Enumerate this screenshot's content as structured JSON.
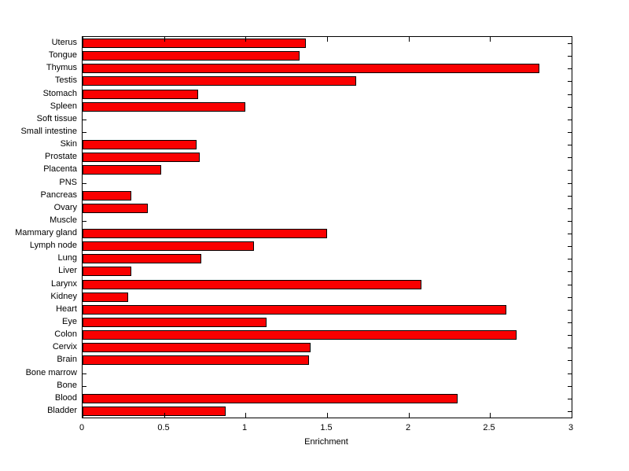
{
  "chart_data": {
    "type": "bar",
    "orientation": "horizontal",
    "title": "",
    "xlabel": "Enrichment",
    "ylabel": "",
    "xlim": [
      0,
      3
    ],
    "xticks": [
      0,
      0.5,
      1,
      1.5,
      2,
      2.5,
      3
    ],
    "xtick_labels": [
      "0",
      "0.5",
      "1",
      "1.5",
      "2",
      "2.5",
      "3"
    ],
    "categories": [
      "Uterus",
      "Tongue",
      "Thymus",
      "Testis",
      "Stomach",
      "Spleen",
      "Soft tissue",
      "Small intestine",
      "Skin",
      "Prostate",
      "Placenta",
      "PNS",
      "Pancreas",
      "Ovary",
      "Muscle",
      "Mammary gland",
      "Lymph node",
      "Lung",
      "Liver",
      "Larynx",
      "Kidney",
      "Heart",
      "Eye",
      "Colon",
      "Cervix",
      "Brain",
      "Bone marrow",
      "Bone",
      "Blood",
      "Bladder"
    ],
    "values": [
      1.37,
      1.33,
      2.8,
      1.68,
      0.71,
      1.0,
      0,
      0,
      0.7,
      0.72,
      0.48,
      0,
      0.3,
      0.4,
      0,
      1.5,
      1.05,
      0.73,
      0.3,
      2.08,
      0.28,
      2.6,
      1.13,
      2.66,
      1.4,
      1.39,
      0,
      0,
      2.3,
      0.88
    ],
    "grid": false,
    "legend": "none",
    "bar_color": "#fa0000",
    "bar_edge_color": "#000000",
    "axis_color": "#000000",
    "background_color": "#ffffff"
  }
}
